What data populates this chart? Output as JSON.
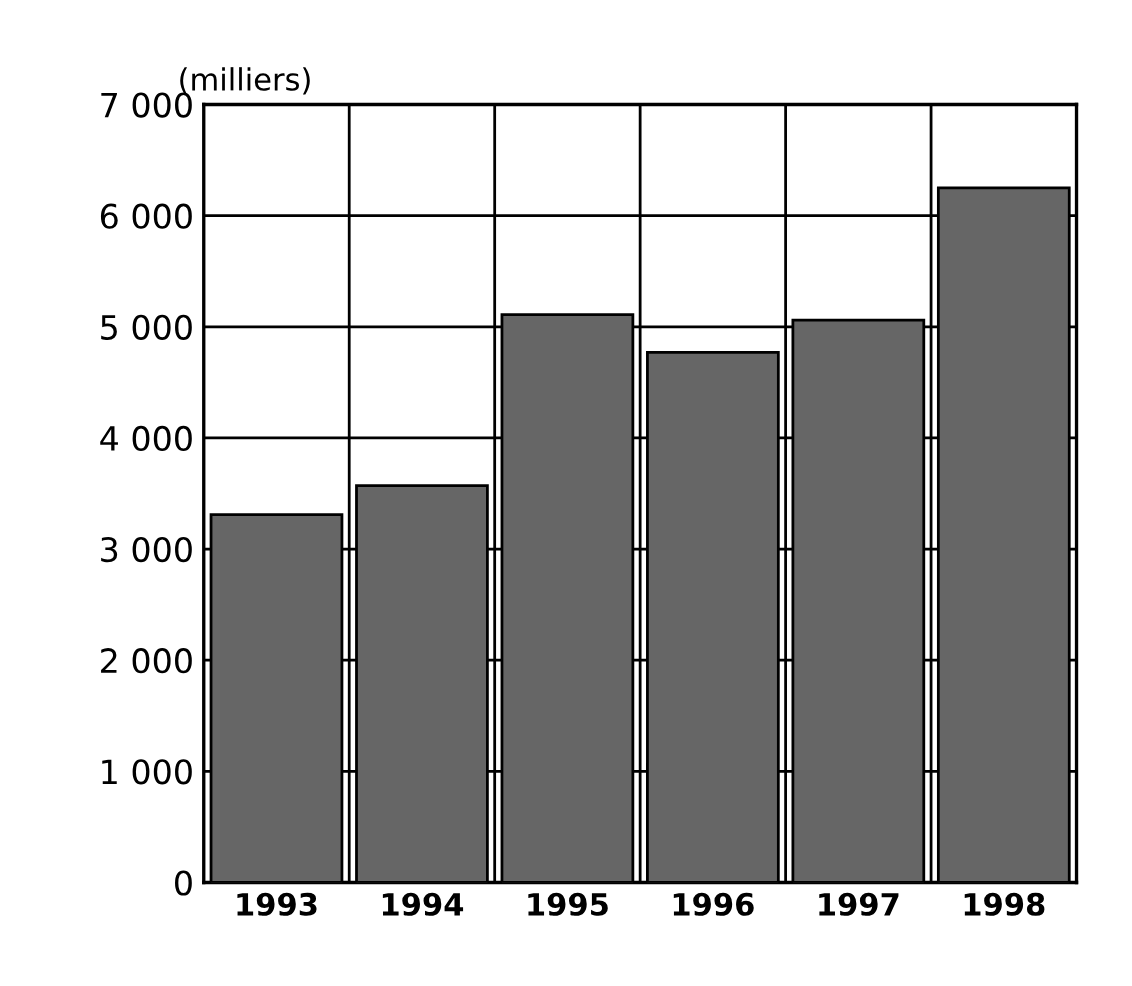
{
  "chart_data": {
    "type": "bar",
    "ylabel": "(milliers)",
    "categories": [
      "1993",
      "1994",
      "1995",
      "1996",
      "1997",
      "1998"
    ],
    "values": [
      3310,
      3570,
      5110,
      4770,
      5060,
      6250
    ],
    "color": "#666666",
    "ylim": [
      0,
      7000
    ],
    "yticks": [
      {
        "value": 0,
        "label": "0"
      },
      {
        "value": 1000,
        "label": "1 000"
      },
      {
        "value": 2000,
        "label": "2 000"
      },
      {
        "value": 3000,
        "label": "3 000"
      },
      {
        "value": 4000,
        "label": "4 000"
      },
      {
        "value": 5000,
        "label": "5 000"
      },
      {
        "value": 6000,
        "label": "6 000"
      },
      {
        "value": 7000,
        "label": "7 000"
      }
    ],
    "grid": true
  }
}
